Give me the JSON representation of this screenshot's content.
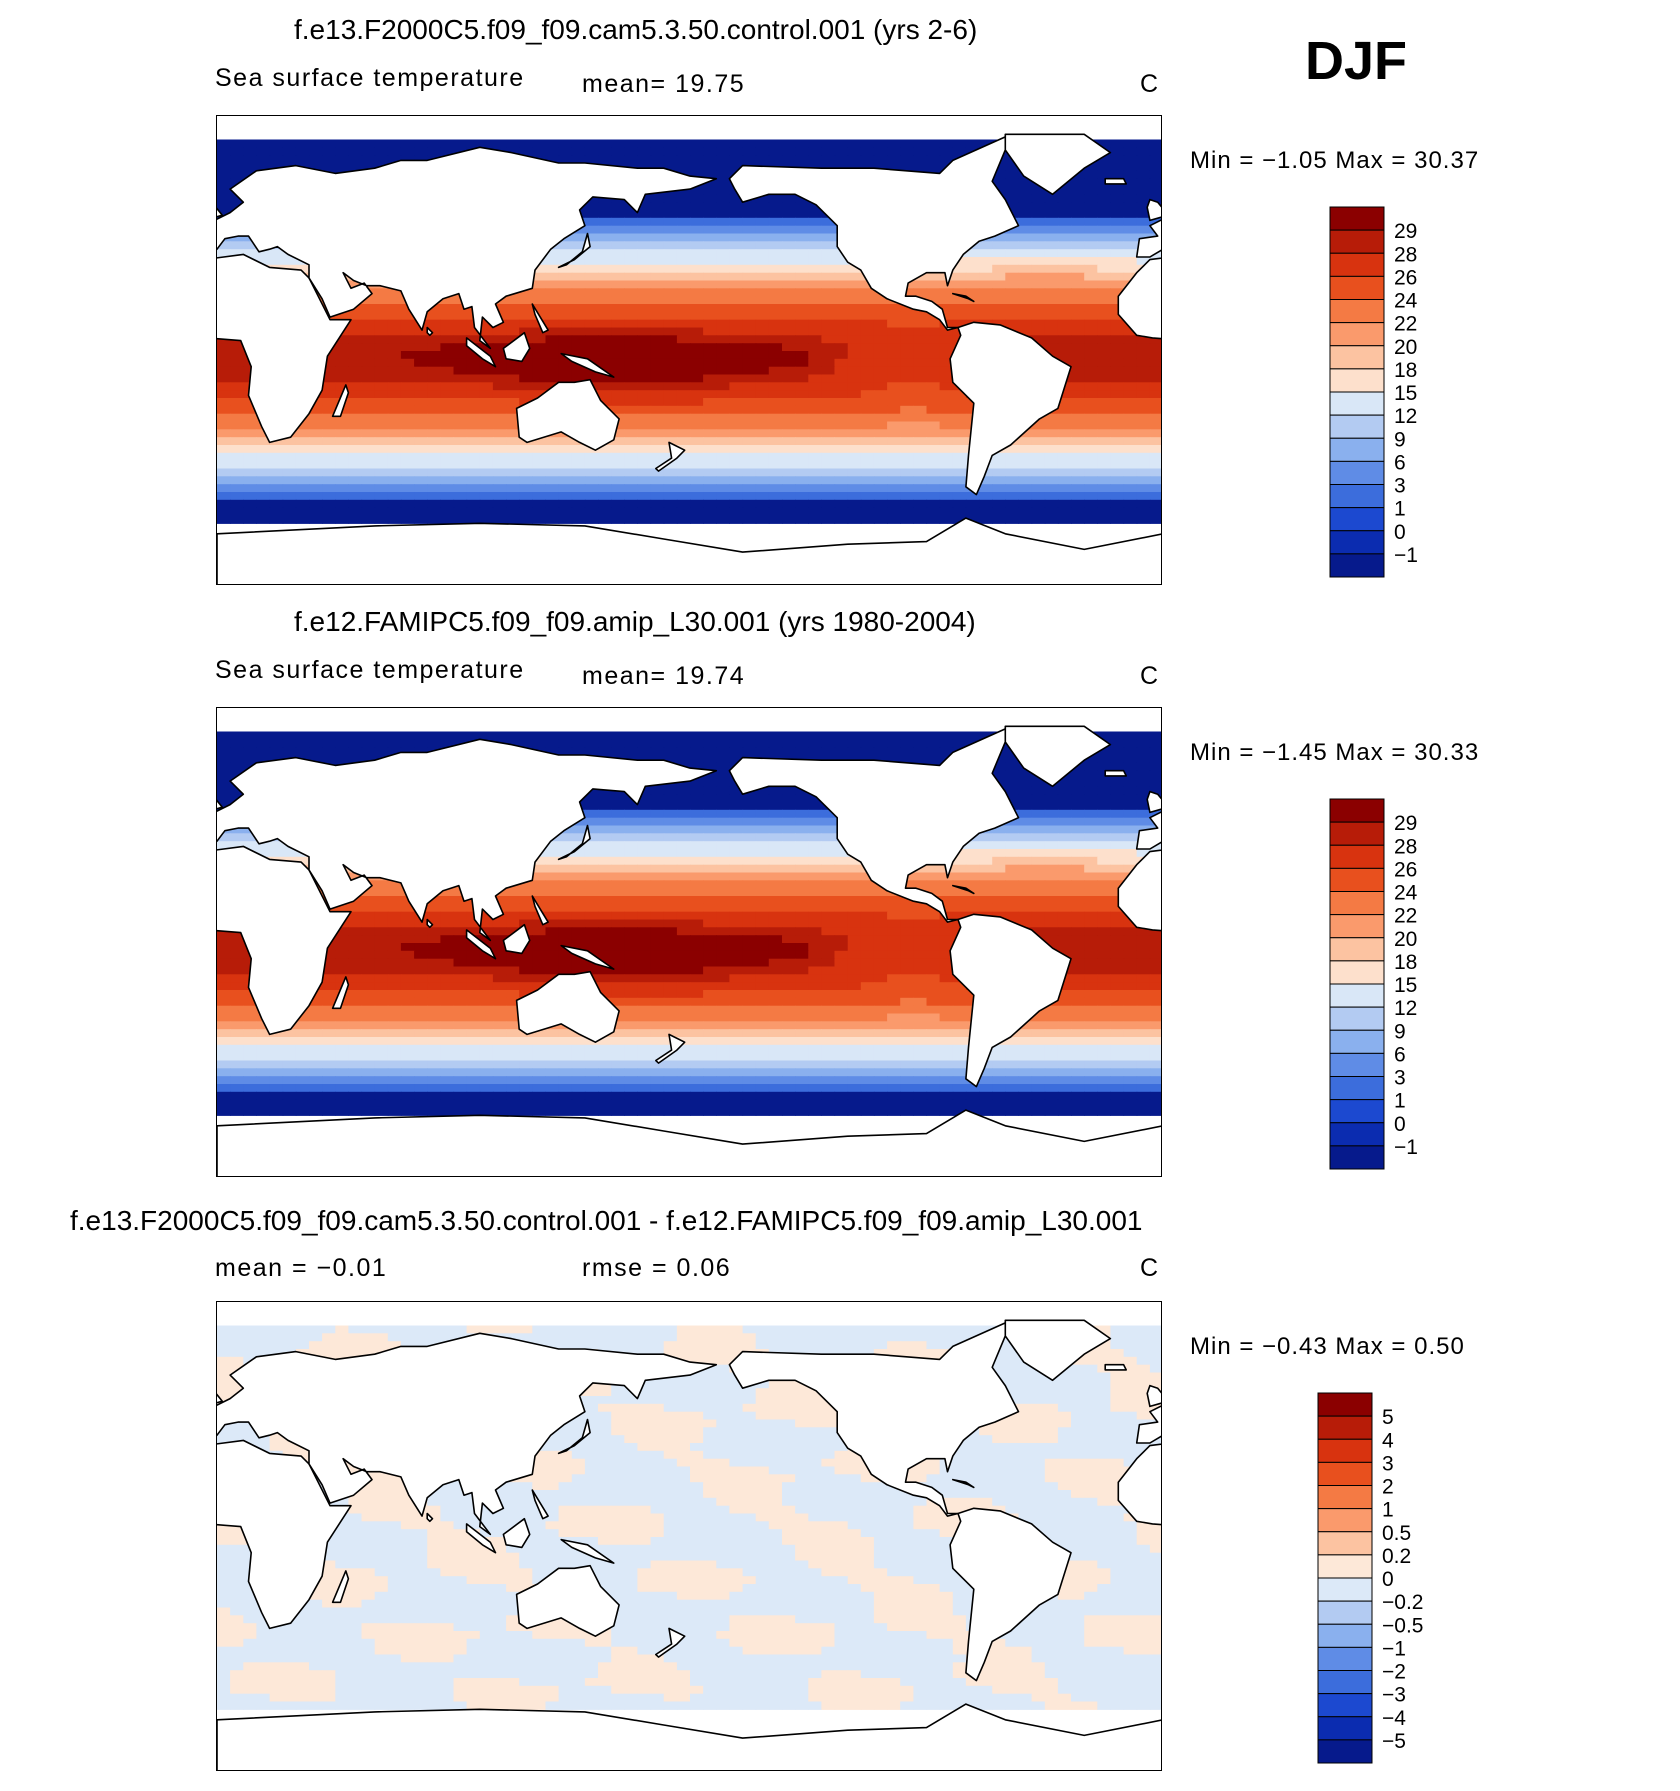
{
  "season": "DJF",
  "panels": [
    {
      "title": "f.e13.F2000C5.f09_f09.cam5.3.50.control.001 (yrs 2-6)",
      "variable": "Sea surface temperature",
      "stat1": "mean=   19.75",
      "stat2": "",
      "unit": "C",
      "minmax": "Min =   −1.05 Max =   30.37",
      "colorbar": {
        "labels": [
          "29",
          "28",
          "26",
          "24",
          "22",
          "20",
          "18",
          "15",
          "12",
          "9",
          "6",
          "3",
          "1",
          "0",
          "−1"
        ],
        "colors": [
          "#8b0000",
          "#b71c08",
          "#d8330f",
          "#e8501e",
          "#f47a44",
          "#fa9a6c",
          "#fcc3a1",
          "#fde0cc",
          "#d9e7f7",
          "#b3cbf2",
          "#8ab0ee",
          "#5f8ce6",
          "#3c6ddc",
          "#1c49d0",
          "#0b2cb0",
          "#061a8c"
        ]
      },
      "field": "sst"
    },
    {
      "title": "f.e12.FAMIPC5.f09_f09.amip_L30.001 (yrs 1980-2004)",
      "variable": "Sea surface temperature",
      "stat1": "mean=   19.74",
      "stat2": "",
      "unit": "C",
      "minmax": "Min =   −1.45 Max =   30.33",
      "colorbar": {
        "labels": [
          "29",
          "28",
          "26",
          "24",
          "22",
          "20",
          "18",
          "15",
          "12",
          "9",
          "6",
          "3",
          "1",
          "0",
          "−1"
        ],
        "colors": [
          "#8b0000",
          "#b71c08",
          "#d8330f",
          "#e8501e",
          "#f47a44",
          "#fa9a6c",
          "#fcc3a1",
          "#fde0cc",
          "#d9e7f7",
          "#b3cbf2",
          "#8ab0ee",
          "#5f8ce6",
          "#3c6ddc",
          "#1c49d0",
          "#0b2cb0",
          "#061a8c"
        ]
      },
      "field": "sst"
    },
    {
      "title": "f.e13.F2000C5.f09_f09.cam5.3.50.control.001 - f.e12.FAMIPC5.f09_f09.amip_L30.001",
      "variable": "",
      "stat1": "mean =   −0.01",
      "stat2": "rmse =    0.06",
      "unit": "C",
      "minmax": "Min =   −0.43 Max =    0.50",
      "colorbar": {
        "labels": [
          "5",
          "4",
          "3",
          "2",
          "1",
          "0.5",
          "0.2",
          "0",
          "−0.2",
          "−0.5",
          "−1",
          "−2",
          "−3",
          "−4",
          "−5"
        ],
        "colors": [
          "#8b0000",
          "#b71c08",
          "#d8330f",
          "#e8501e",
          "#f47a44",
          "#fa9a6c",
          "#fcc3a1",
          "#fde8d8",
          "#dce9f8",
          "#b3cbf2",
          "#8ab0ee",
          "#5f8ce6",
          "#3c6ddc",
          "#1c49d0",
          "#0b2cb0",
          "#061a8c"
        ]
      },
      "field": "diff"
    }
  ]
}
